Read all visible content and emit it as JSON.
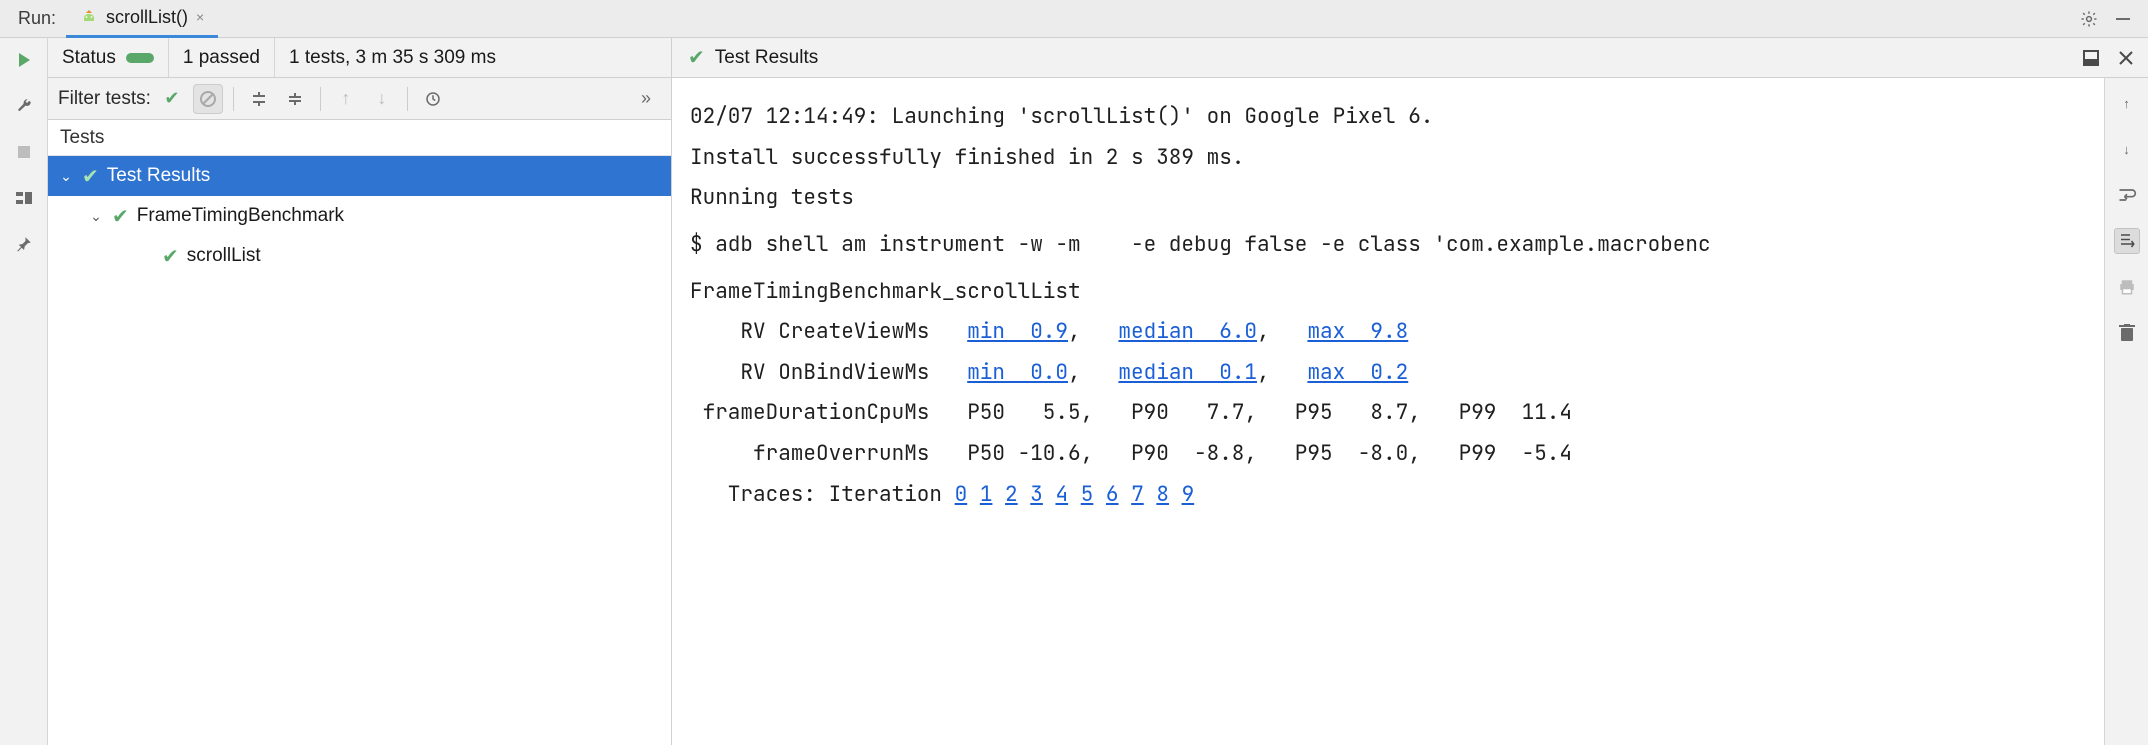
{
  "top": {
    "run_label": "Run:",
    "tab_label": "scrollList()",
    "tab_close_glyph": "×"
  },
  "status": {
    "label": "Status",
    "passed": "1 passed",
    "summary": "1 tests, 3 m 35 s 309 ms",
    "results_label": "Test Results"
  },
  "filter": {
    "label": "Filter tests:",
    "more_glyph": "»"
  },
  "tests_header": "Tests",
  "tree": {
    "root": "Test Results",
    "class": "FrameTimingBenchmark",
    "method": "scrollList"
  },
  "console": {
    "launch": "02/07 12:14:49: Launching 'scrollList()' on Google Pixel 6.",
    "install": "Install successfully finished in 2 s 389 ms.",
    "running": "Running tests",
    "blank": "",
    "cmd": "$ adb shell am instrument -w -m    -e debug false -e class 'com.example.macrobenc",
    "bench_title": "FrameTimingBenchmark_scrollList",
    "row1": {
      "label": "    RV CreateViewMs   ",
      "min": "min  0.9",
      "sep1": ",   ",
      "median": "median  6.0",
      "sep2": ",   ",
      "max": "max  9.8"
    },
    "row2": {
      "label": "    RV OnBindViewMs   ",
      "min": "min  0.0",
      "sep1": ",   ",
      "median": "median  0.1",
      "sep2": ",   ",
      "max": "max  0.2"
    },
    "row3": " frameDurationCpuMs   P50   5.5,   P90   7.7,   P95   8.7,   P99  11.4",
    "row4": "     frameOverrunMs   P50 -10.6,   P90  -8.8,   P95  -8.0,   P99  -5.4",
    "traces_label": "   Traces: Iteration ",
    "iters": [
      "0",
      "1",
      "2",
      "3",
      "4",
      "5",
      "6",
      "7",
      "8",
      "9"
    ]
  },
  "colors": {
    "accent": "#2f74d0",
    "pass": "#59a869",
    "link": "#1a5fd6",
    "panel": "#f2f2f2",
    "border": "#d0d0d0",
    "text": "#1a1a1a"
  }
}
